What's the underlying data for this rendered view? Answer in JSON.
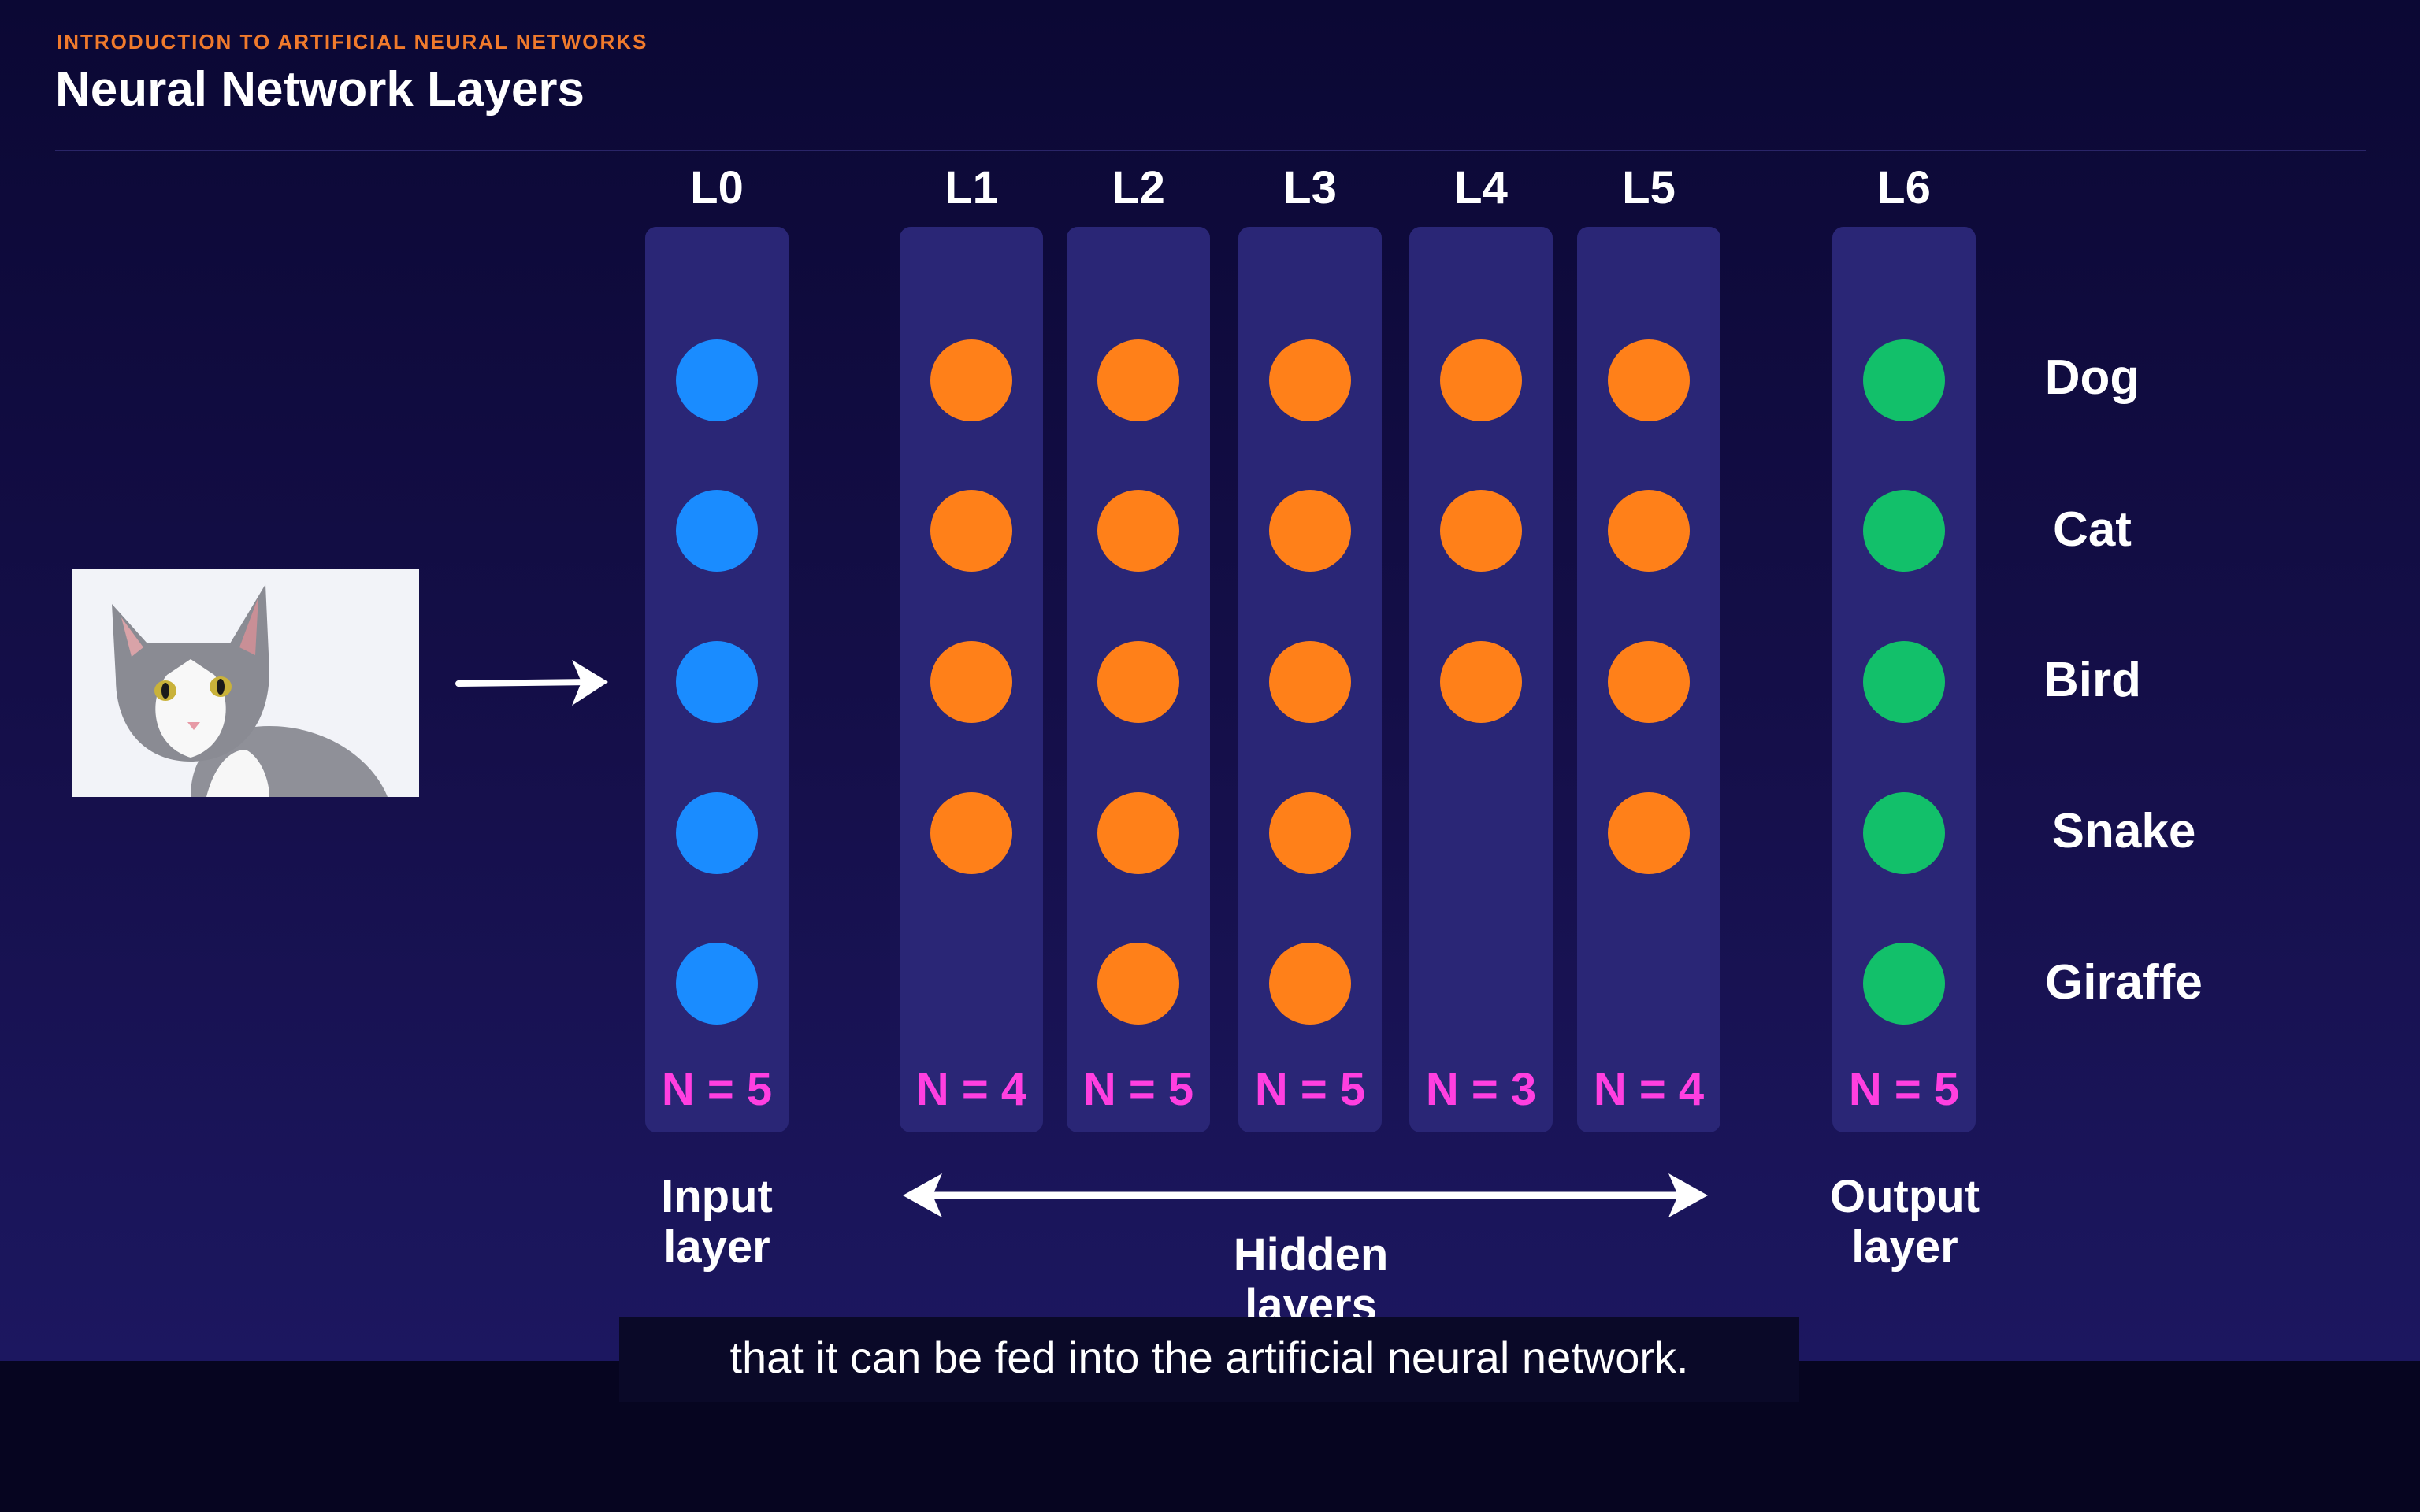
{
  "header": {
    "eyebrow": "INTRODUCTION TO ARTIFICIAL NEURAL NETWORKS",
    "title": "Neural Network Layers"
  },
  "layers": [
    {
      "label": "L0",
      "count": "N = 5",
      "nodes": 5,
      "kind": "input"
    },
    {
      "label": "L1",
      "count": "N = 4",
      "nodes": 4,
      "kind": "hidden"
    },
    {
      "label": "L2",
      "count": "N = 5",
      "nodes": 5,
      "kind": "hidden"
    },
    {
      "label": "L3",
      "count": "N = 5",
      "nodes": 5,
      "kind": "hidden"
    },
    {
      "label": "L4",
      "count": "N = 3",
      "nodes": 3,
      "kind": "hidden"
    },
    {
      "label": "L5",
      "count": "N = 4",
      "nodes": 4,
      "kind": "hidden"
    },
    {
      "label": "L6",
      "count": "N = 5",
      "nodes": 5,
      "kind": "output"
    }
  ],
  "outputs": [
    "Dog",
    "Cat",
    "Bird",
    "Snake",
    "Giraffe"
  ],
  "captions": {
    "input_line1": "Input",
    "input_line2": "layer",
    "hidden_line1": "Hidden",
    "hidden_line2": "layers",
    "output_line1": "Output",
    "output_line2": "layer"
  },
  "image": {
    "subject": "cat-photo"
  },
  "subtitle": "that it can be fed into the artificial neural network.",
  "colors": {
    "input": "#1a8cff",
    "hidden": "#ff8019",
    "output": "#12c06a",
    "count": "#ff3fe0",
    "eyebrow": "#f07a2c"
  }
}
